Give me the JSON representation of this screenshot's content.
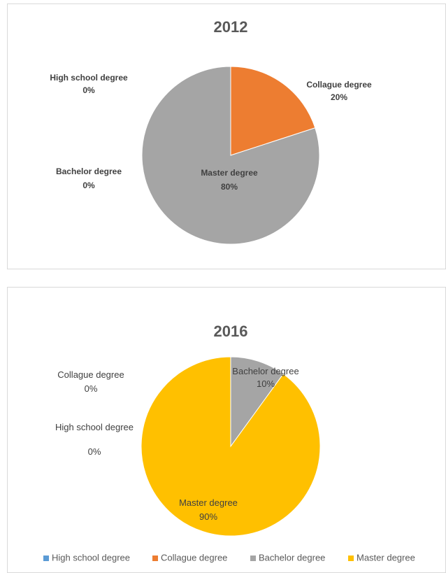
{
  "chart_data": [
    {
      "type": "pie",
      "title": "2012",
      "categories": [
        "High school degree",
        "Collague degree",
        "Bachelor degree",
        "Master degree"
      ],
      "values": [
        0,
        20,
        0,
        80
      ],
      "value_labels": [
        "0%",
        "20%",
        "0%",
        "80%"
      ],
      "colors": [
        "#5b9bd5",
        "#ed7d31",
        "#a5a5a5",
        "#a5a5a5"
      ]
    },
    {
      "type": "pie",
      "title": "2016",
      "categories": [
        "High school degree",
        "Collague degree",
        "Bachelor degree",
        "Master degree"
      ],
      "values": [
        0,
        0,
        10,
        90
      ],
      "value_labels": [
        "0%",
        "0%",
        "10%",
        "90%"
      ],
      "colors": [
        "#5b9bd5",
        "#ed7d31",
        "#a5a5a5",
        "#ffc000"
      ],
      "legend": "bottom"
    }
  ]
}
